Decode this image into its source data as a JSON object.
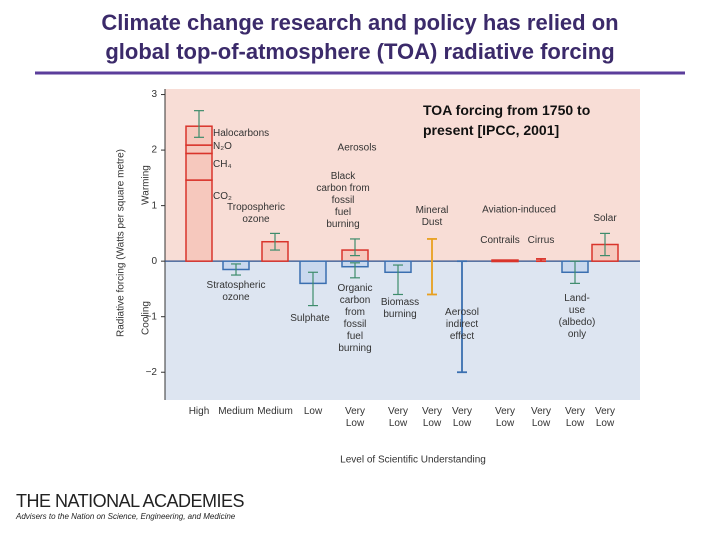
{
  "slide": {
    "title": "Climate change research and policy has relied on\nglobal top-of-atmosphere (TOA) radiative forcing",
    "caption": "TOA forcing from 1750 to\npresent [IPCC, 2001]",
    "logo": "THE NATIONAL ACADEMIES",
    "logo_subtitle": "Advisers to the Nation on Science, Engineering, and Medicine"
  },
  "chart_data": {
    "type": "bar",
    "ylabel": "Radiative forcing  (Watts per square metre)",
    "xlabel": "Level  of Scientific Understanding",
    "ylim": [
      -2.5,
      3.1
    ],
    "yticks": [
      3,
      2,
      1,
      0,
      {
        "value": -1,
        "label": "−1"
      },
      {
        "value": -2,
        "label": "−2"
      }
    ],
    "categories": [
      "High",
      "Medium",
      "Medium",
      "Low",
      "Very\nLow",
      "Very\nLow",
      "Very\nLow",
      "Very\nLow",
      "Very\nLow",
      "Very\nLow",
      "Very\nLow",
      "Very\nLow"
    ],
    "annotations": [
      "Aerosols",
      "Aviation-induced",
      "Warming",
      "Cooling"
    ],
    "background_positive": "#f8ddd6",
    "background_negative": "#dde5f1",
    "error_color": "#3e8c6c",
    "series": [
      {
        "name": "CO₂",
        "color": "#d9342b",
        "fill": "#f6c8bd",
        "values": [
          1.46,
          null,
          null,
          null,
          null,
          null,
          null,
          null,
          null,
          null,
          null,
          null
        ]
      },
      {
        "name": "CH₄",
        "color": "#d9342b",
        "fill": "#f6c8bd",
        "values": [
          0.48,
          null,
          null,
          null,
          null,
          null,
          null,
          null,
          null,
          null,
          null,
          null
        ]
      },
      {
        "name": "N₂O",
        "color": "#d9342b",
        "fill": "#f6c8bd",
        "values": [
          0.15,
          null,
          null,
          null,
          null,
          null,
          null,
          null,
          null,
          null,
          null,
          null
        ]
      },
      {
        "name": "Halocarbons",
        "color": "#d9342b",
        "fill": "#f6c8bd",
        "values": [
          0.34,
          null,
          null,
          null,
          null,
          null,
          null,
          null,
          null,
          null,
          null,
          null
        ],
        "error_low": [
          2.23,
          null,
          null,
          null,
          null,
          null,
          null,
          null,
          null,
          null,
          null,
          null
        ],
        "error_high": [
          2.71,
          null,
          null,
          null,
          null,
          null,
          null,
          null,
          null,
          null,
          null,
          null
        ]
      },
      {
        "name": "Tropospheric\nozone",
        "color": "#d9342b",
        "fill": "#f6c8bd",
        "values": [
          null,
          null,
          0.35,
          null,
          null,
          null,
          null,
          null,
          null,
          null,
          null,
          null
        ],
        "error_low": [
          null,
          null,
          0.2,
          null,
          null,
          null,
          null,
          null,
          null,
          null,
          null,
          null
        ],
        "error_high": [
          null,
          null,
          0.5,
          null,
          null,
          null,
          null,
          null,
          null,
          null,
          null,
          null
        ]
      },
      {
        "name": "Stratospheric\nozone",
        "color": "#3a6fb0",
        "fill": "#c9d8ee",
        "values": [
          null,
          -0.15,
          null,
          null,
          null,
          null,
          null,
          null,
          null,
          null,
          null,
          null
        ],
        "error_low": [
          null,
          -0.25,
          null,
          null,
          null,
          null,
          null,
          null,
          null,
          null,
          null,
          null
        ],
        "error_high": [
          null,
          -0.05,
          null,
          null,
          null,
          null,
          null,
          null,
          null,
          null,
          null,
          null
        ]
      },
      {
        "name": "Sulphate",
        "color": "#3a6fb0",
        "fill": "#c9d8ee",
        "values": [
          null,
          null,
          null,
          -0.4,
          null,
          null,
          null,
          null,
          null,
          null,
          null,
          null
        ],
        "error_low": [
          null,
          null,
          null,
          -0.8,
          null,
          null,
          null,
          null,
          null,
          null,
          null,
          null
        ],
        "error_high": [
          null,
          null,
          null,
          -0.2,
          null,
          null,
          null,
          null,
          null,
          null,
          null,
          null
        ]
      },
      {
        "name": "Black\ncarbon from\nfossil\nfuel\nburning",
        "color": "#d9342b",
        "fill": "#f6c8bd",
        "values": [
          null,
          null,
          null,
          null,
          0.2,
          null,
          null,
          null,
          null,
          null,
          null,
          null
        ],
        "error_low": [
          null,
          null,
          null,
          null,
          0.1,
          null,
          null,
          null,
          null,
          null,
          null,
          null
        ],
        "error_high": [
          null,
          null,
          null,
          null,
          0.4,
          null,
          null,
          null,
          null,
          null,
          null,
          null
        ]
      },
      {
        "name": "Organic\ncarbon\nfrom\nfossil\nfuel\nburning",
        "color": "#3a6fb0",
        "fill": "#c9d8ee",
        "values": [
          null,
          null,
          null,
          null,
          -0.1,
          null,
          null,
          null,
          null,
          null,
          null,
          null
        ],
        "error_low": [
          null,
          null,
          null,
          null,
          -0.3,
          null,
          null,
          null,
          null,
          null,
          null,
          null
        ],
        "error_high": [
          null,
          null,
          null,
          null,
          -0.03,
          null,
          null,
          null,
          null,
          null,
          null,
          null
        ]
      },
      {
        "name": "Biomass\nburning",
        "color": "#3a6fb0",
        "fill": "#c9d8ee",
        "values": [
          null,
          null,
          null,
          null,
          null,
          -0.2,
          null,
          null,
          null,
          null,
          null,
          null
        ],
        "error_low": [
          null,
          null,
          null,
          null,
          null,
          -0.6,
          null,
          null,
          null,
          null,
          null,
          null
        ],
        "error_high": [
          null,
          null,
          null,
          null,
          null,
          -0.07,
          null,
          null,
          null,
          null,
          null,
          null
        ]
      },
      {
        "name": "Mineral\nDust",
        "color": "#e8a020",
        "fill": "#e8a020",
        "values": [
          null,
          null,
          null,
          null,
          null,
          null,
          null,
          null,
          null,
          null,
          null,
          null
        ],
        "error_low": [
          null,
          null,
          null,
          null,
          null,
          null,
          -0.6,
          null,
          null,
          null,
          null,
          null
        ],
        "error_high": [
          null,
          null,
          null,
          null,
          null,
          null,
          0.4,
          null,
          null,
          null,
          null,
          null
        ]
      },
      {
        "name": "Aerosol\nindirect\neffect",
        "color": "#3a6fb0",
        "fill": "#3a6fb0",
        "values": [
          null,
          null,
          null,
          null,
          null,
          null,
          null,
          null,
          null,
          null,
          null,
          null
        ],
        "error_low": [
          null,
          null,
          null,
          null,
          null,
          null,
          null,
          -2.0,
          null,
          null,
          null,
          null
        ],
        "error_high": [
          null,
          null,
          null,
          null,
          null,
          null,
          null,
          0,
          null,
          null,
          null,
          null
        ]
      },
      {
        "name": "Contrails",
        "color": "#d9342b",
        "fill": "#f6c8bd",
        "values": [
          null,
          null,
          null,
          null,
          null,
          null,
          null,
          null,
          0.02,
          null,
          null,
          null
        ]
      },
      {
        "name": "Cirrus",
        "color": "#d9342b",
        "fill": "#d9342b",
        "values": [
          null,
          null,
          null,
          null,
          null,
          null,
          null,
          null,
          null,
          null,
          null,
          null
        ],
        "error_low": [
          null,
          null,
          null,
          null,
          null,
          null,
          null,
          null,
          null,
          0,
          null,
          null
        ],
        "error_high": [
          null,
          null,
          null,
          null,
          null,
          null,
          null,
          null,
          null,
          0.04,
          null,
          null
        ]
      },
      {
        "name": "Land-\nuse\n(albedo)\nonly",
        "color": "#3a6fb0",
        "fill": "#c9d8ee",
        "values": [
          null,
          null,
          null,
          null,
          null,
          null,
          null,
          null,
          null,
          null,
          -0.2,
          null
        ],
        "error_low": [
          null,
          null,
          null,
          null,
          null,
          null,
          null,
          null,
          null,
          null,
          -0.4,
          null
        ],
        "error_high": [
          null,
          null,
          null,
          null,
          null,
          null,
          null,
          null,
          null,
          null,
          0,
          null
        ]
      },
      {
        "name": "Solar",
        "color": "#d9342b",
        "fill": "#f6c8bd",
        "values": [
          null,
          null,
          null,
          null,
          null,
          null,
          null,
          null,
          null,
          null,
          null,
          0.3
        ],
        "error_low": [
          null,
          null,
          null,
          null,
          null,
          null,
          null,
          null,
          null,
          null,
          null,
          0.1
        ],
        "error_high": [
          null,
          null,
          null,
          null,
          null,
          null,
          null,
          null,
          null,
          null,
          null,
          0.5
        ]
      }
    ]
  }
}
